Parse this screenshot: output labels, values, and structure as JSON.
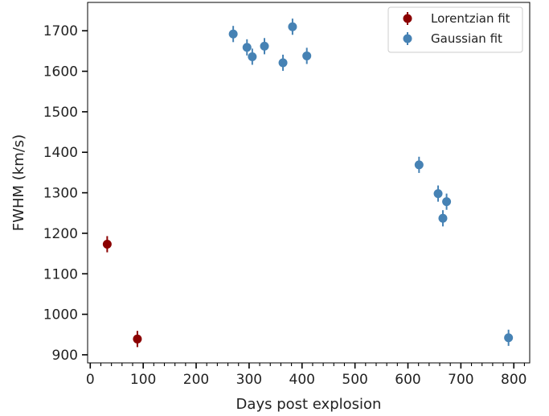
{
  "chart_data": {
    "type": "scatter",
    "xlabel": "Days post explosion",
    "ylabel": "FWHM (km/s)",
    "xlim": [
      -5,
      830
    ],
    "ylim": [
      880,
      1770
    ],
    "xticks": [
      0,
      100,
      200,
      300,
      400,
      500,
      600,
      700,
      800
    ],
    "yticks": [
      900,
      1000,
      1100,
      1200,
      1300,
      1400,
      1500,
      1600,
      1700
    ],
    "x_minor_step": 20,
    "grid": false,
    "legend_position": "top-right",
    "series": [
      {
        "name": "Lorentzian fit",
        "color": "#8b0000",
        "points": [
          {
            "x": 32,
            "y": 1173,
            "err": 20
          },
          {
            "x": 89,
            "y": 939,
            "err": 20
          }
        ]
      },
      {
        "name": "Gaussian fit",
        "color": "#4682b4",
        "points": [
          {
            "x": 270,
            "y": 1692,
            "err": 20
          },
          {
            "x": 296,
            "y": 1659,
            "err": 20
          },
          {
            "x": 306,
            "y": 1636,
            "err": 20
          },
          {
            "x": 329,
            "y": 1662,
            "err": 20
          },
          {
            "x": 364,
            "y": 1621,
            "err": 20
          },
          {
            "x": 382,
            "y": 1710,
            "err": 20
          },
          {
            "x": 409,
            "y": 1638,
            "err": 20
          },
          {
            "x": 621,
            "y": 1369,
            "err": 20
          },
          {
            "x": 657,
            "y": 1298,
            "err": 20
          },
          {
            "x": 666,
            "y": 1237,
            "err": 20
          },
          {
            "x": 673,
            "y": 1278,
            "err": 20
          },
          {
            "x": 790,
            "y": 942,
            "err": 20
          }
        ]
      }
    ]
  }
}
